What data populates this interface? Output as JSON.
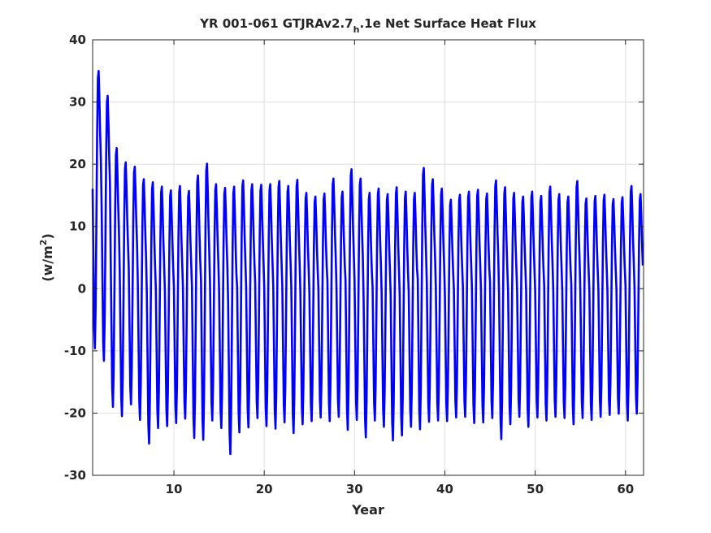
{
  "chart_data": {
    "type": "line",
    "title": {
      "prefix": "YR 001-061 GTJRAv2.7",
      "subscript": "h",
      "suffix": ".1e Net Surface Heat Flux"
    },
    "xlabel": "Year",
    "ylabel": {
      "base": "(w/m",
      "superscript": "2",
      "close": ")"
    },
    "xlim": [
      1,
      62
    ],
    "ylim": [
      -30,
      40
    ],
    "xticks": [
      10,
      20,
      30,
      40,
      50,
      60
    ],
    "yticks": [
      -30,
      -20,
      -10,
      0,
      10,
      20,
      30,
      40
    ],
    "grid": true,
    "series": [
      {
        "color": "#0000ff",
        "samples_per_year": 12,
        "annual_max": [
          35,
          31,
          22.6,
          20.3,
          19.6,
          17.6,
          17.1,
          16.4,
          15.8,
          16.5,
          15.7,
          18.2,
          20.1,
          16.8,
          16.2,
          16.4,
          17.4,
          16.8,
          16.7,
          16.8,
          17.3,
          16.5,
          17.5,
          15.4,
          14.8,
          15.3,
          17.7,
          15.6,
          19.2,
          17.7,
          15.4,
          16.1,
          15.2,
          16.3,
          15.6,
          15.4,
          19.4,
          17.6,
          16.1,
          14.3,
          15.1,
          15.6,
          15.9,
          15.3,
          17.4,
          16.3,
          15.4,
          14.8,
          15.6,
          14.9,
          16.4,
          15.2,
          14.8,
          17.3,
          14.5,
          14.9,
          15.1,
          14.4,
          14.7,
          16.5,
          15.2
        ],
        "annual_min": [
          -9.6,
          -11.6,
          -19,
          -20.5,
          -18.6,
          -21.1,
          -24.9,
          -22.4,
          -22.1,
          -21.6,
          -20.9,
          -24,
          -24.3,
          -21.2,
          -22.4,
          -26.6,
          -23.1,
          -22.3,
          -20.8,
          -22.1,
          -22.5,
          -21.5,
          -23.2,
          -21.8,
          -21.3,
          -20.7,
          -21.3,
          -20.6,
          -22.7,
          -21.1,
          -23.9,
          -21.2,
          -22.2,
          -24.4,
          -23.6,
          -22.2,
          -22.6,
          -21.4,
          -21.2,
          -21.3,
          -20.7,
          -20.6,
          -21.6,
          -21.5,
          -20.8,
          -24.2,
          -21.8,
          -20.6,
          -22.2,
          -20.7,
          -21.2,
          -20.6,
          -20.8,
          -21.8,
          -20.8,
          -21.1,
          -20.6,
          -20.3,
          -20.1,
          -21.2,
          -20.1
        ]
      }
    ]
  }
}
